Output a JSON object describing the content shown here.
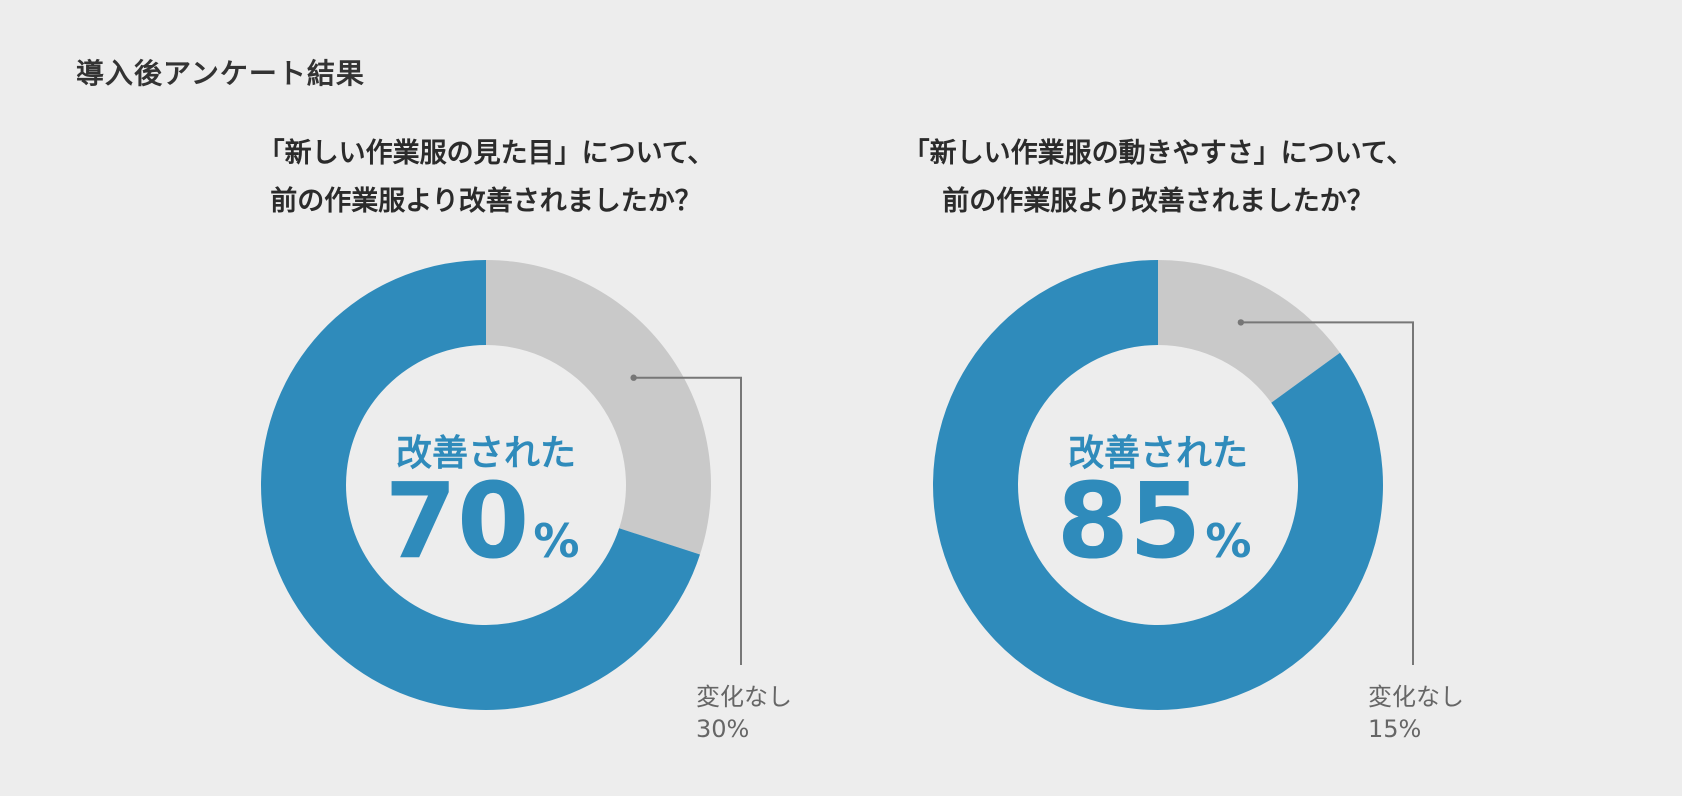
{
  "page": {
    "heading": "導入後アンケート結果"
  },
  "colors": {
    "primary": "#2f8bbb",
    "remainder": "#c9c9c9",
    "background": "#ededed",
    "leader": "#777777",
    "label_text": "#666666"
  },
  "chart_data": [
    {
      "type": "pie",
      "style": "donut",
      "title_lines": [
        "「新しい作業服の見た目」について、",
        "前の作業服より改善されましたか？"
      ],
      "categories": [
        "改善された",
        "変化なし"
      ],
      "values": [
        70,
        30
      ],
      "unit": "%",
      "center_label": "改善された",
      "center_value": "70",
      "center_unit": "%",
      "callout_label": "変化なし",
      "callout_value": "30%"
    },
    {
      "type": "pie",
      "style": "donut",
      "title_lines": [
        "「新しい作業服の動きやすさ」について、",
        "前の作業服より改善されましたか？"
      ],
      "categories": [
        "改善された",
        "変化なし"
      ],
      "values": [
        85,
        15
      ],
      "unit": "%",
      "center_label": "改善された",
      "center_value": "85",
      "center_unit": "%",
      "callout_label": "変化なし",
      "callout_value": "15%"
    }
  ]
}
